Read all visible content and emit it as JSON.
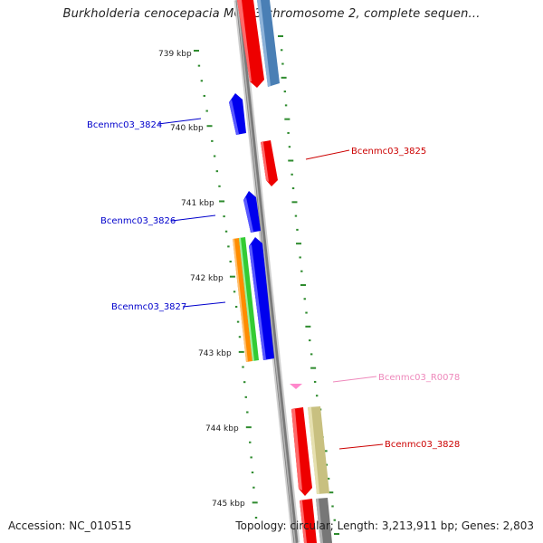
{
  "header": {
    "title": "Burkholderia cenocepacia MC0-3 chromosome 2, complete sequen..."
  },
  "footer": {
    "accession": "Accession: NC_010515",
    "summary": "Topology: circular; Length: 3,213,911 bp; Genes: 2,803"
  },
  "map": {
    "ticks": [
      {
        "label": "739 kbp",
        "kbp": 739
      },
      {
        "label": "740 kbp",
        "kbp": 740
      },
      {
        "label": "741 kbp",
        "kbp": 741
      },
      {
        "label": "742 kbp",
        "kbp": 742
      },
      {
        "label": "743 kbp",
        "kbp": 743
      },
      {
        "label": "744 kbp",
        "kbp": 744
      },
      {
        "label": "745 kbp",
        "kbp": 745
      }
    ],
    "gene_labels": [
      {
        "name": "Bcenmc03_3824",
        "color": "#0000cc",
        "side": "left"
      },
      {
        "name": "Bcenmc03_3825",
        "color": "#cc0000",
        "side": "right"
      },
      {
        "name": "Bcenmc03_3826",
        "color": "#0000cc",
        "side": "left"
      },
      {
        "name": "Bcenmc03_3827",
        "color": "#0000cc",
        "side": "left"
      },
      {
        "name": "Bcenmc03_R0078",
        "color": "#ee88bb",
        "side": "right"
      },
      {
        "name": "Bcenmc03_3828",
        "color": "#cc0000",
        "side": "right"
      }
    ],
    "colors": {
      "backbone": "#8a8a8a",
      "tick_marks": "#2e8b2e",
      "forward_gene": "#0000ee",
      "reverse_gene": "#ee0000",
      "cds_orange": "#ff8c00",
      "cds_green": "#33cc33",
      "cds_steelblue": "#4a7fb5",
      "cds_khaki": "#c8c080",
      "rna": "#ff88cc",
      "gray_feature": "#777777"
    }
  }
}
